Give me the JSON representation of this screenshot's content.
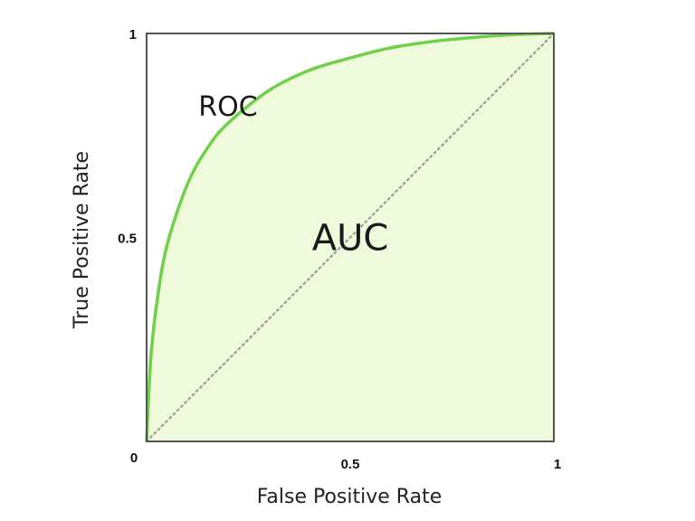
{
  "chart_data": {
    "type": "area",
    "xlabel": "False Positive Rate",
    "ylabel": "True Positive Rate",
    "xlim": [
      0,
      1
    ],
    "ylim": [
      0,
      1
    ],
    "origin_label": "0",
    "x_ticks": [
      {
        "value": 0.5,
        "label": "0.5"
      },
      {
        "value": 1,
        "label": "1"
      }
    ],
    "y_ticks": [
      {
        "value": 0.5,
        "label": "0.5"
      },
      {
        "value": 1,
        "label": "1"
      }
    ],
    "grid": false,
    "series": [
      {
        "kind": "curve",
        "style": "solid",
        "fill_below": true,
        "x": [
          0,
          0.01,
          0.025,
          0.05,
          0.1,
          0.15,
          0.2,
          0.3,
          0.4,
          0.5,
          0.6,
          0.7,
          0.8,
          0.9,
          1
        ],
        "y": [
          0,
          0.2,
          0.34,
          0.48,
          0.63,
          0.72,
          0.78,
          0.86,
          0.91,
          0.94,
          0.965,
          0.98,
          0.99,
          0.997,
          1
        ]
      },
      {
        "kind": "diagonal",
        "style": "dotted",
        "x": [
          0,
          1
        ],
        "y": [
          0,
          1
        ]
      }
    ],
    "annotations": [
      {
        "id": "roc",
        "text": "ROC",
        "x": 0.2,
        "y": 0.82
      },
      {
        "id": "auc",
        "text": "AUC",
        "x": 0.5,
        "y": 0.5
      }
    ],
    "colors": {
      "curve": "#6fd04a",
      "fill": "#eefada",
      "diagonal": "#9a9a9a",
      "frame": "#555555"
    }
  }
}
